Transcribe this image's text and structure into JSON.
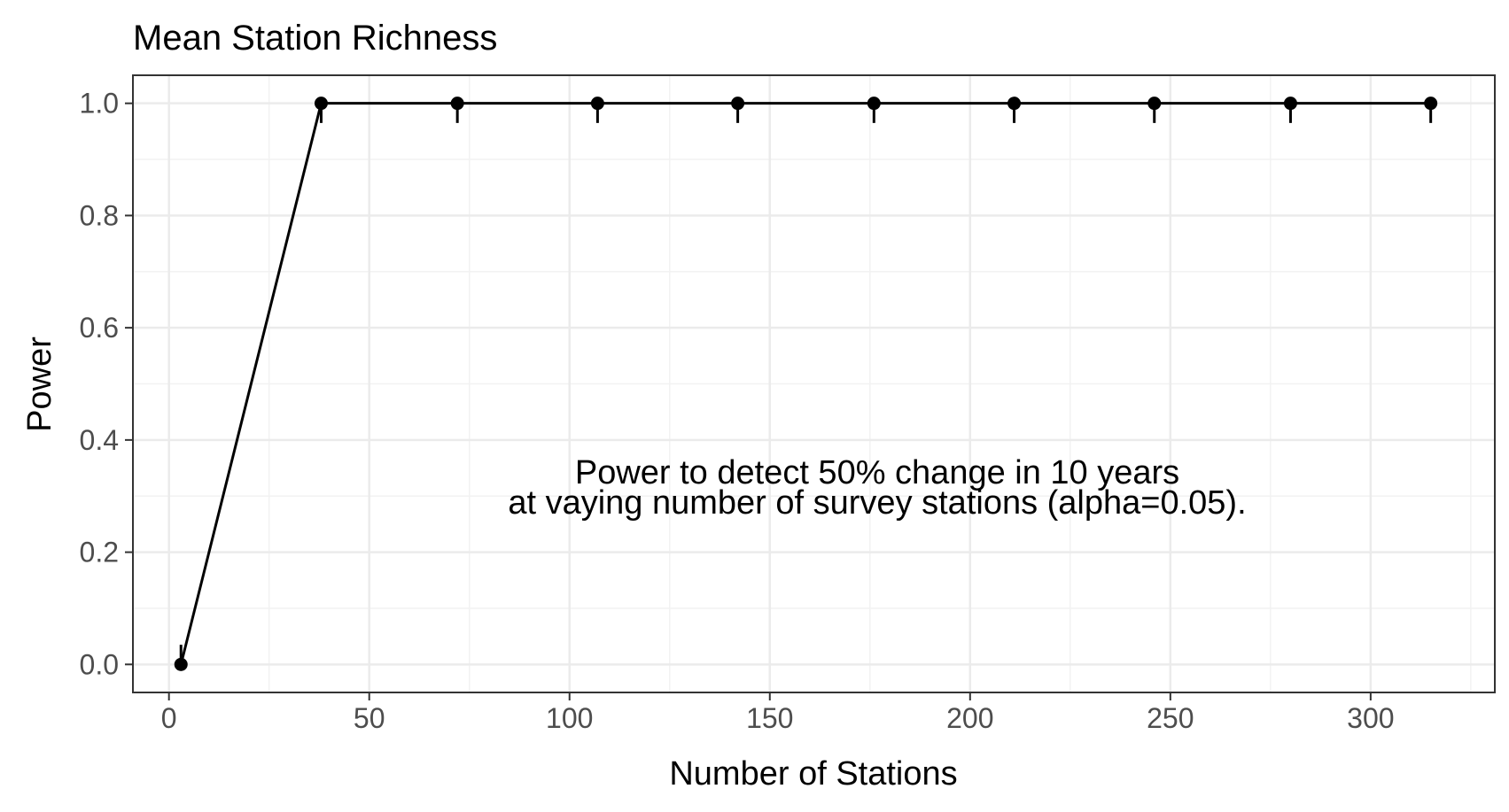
{
  "chart_data": {
    "type": "line",
    "title": "Mean Station Richness",
    "xlabel": "Number of Stations",
    "ylabel": "Power",
    "xlim": [
      -9,
      331
    ],
    "ylim": [
      -0.05,
      1.05
    ],
    "x_ticks": [
      0,
      50,
      100,
      150,
      200,
      250,
      300
    ],
    "x_tick_labels": [
      "0",
      "50",
      "100",
      "150",
      "200",
      "250",
      "300"
    ],
    "y_ticks": [
      0.0,
      0.2,
      0.4,
      0.6,
      0.8,
      1.0
    ],
    "y_tick_labels": [
      "0.0",
      "0.2",
      "0.4",
      "0.6",
      "0.8",
      "1.0"
    ],
    "grid": true,
    "series": [
      {
        "x": [
          3,
          38,
          72,
          107,
          142,
          176,
          211,
          246,
          280,
          315
        ],
        "y": [
          0.0,
          1.0,
          1.0,
          1.0,
          1.0,
          1.0,
          1.0,
          1.0,
          1.0,
          1.0
        ],
        "lower": [
          0.0,
          0.965,
          0.965,
          0.965,
          0.965,
          0.965,
          0.965,
          0.965,
          0.965,
          0.965
        ],
        "upper": [
          0.035,
          1.0,
          1.0,
          1.0,
          1.0,
          1.0,
          1.0,
          1.0,
          1.0,
          1.0
        ],
        "color": "#000000"
      }
    ],
    "annotation": {
      "line1": "Power to detect 50% change in 10 years",
      "line2": "at vaying number of survey stations (alpha=0.05)."
    }
  },
  "colors": {
    "background": "#ffffff",
    "grid_major": "#ebebeb",
    "grid_minor": "#f2f2f2",
    "panel_border": "#333333",
    "tick_text": "#4d4d4d",
    "series": "#000000"
  }
}
